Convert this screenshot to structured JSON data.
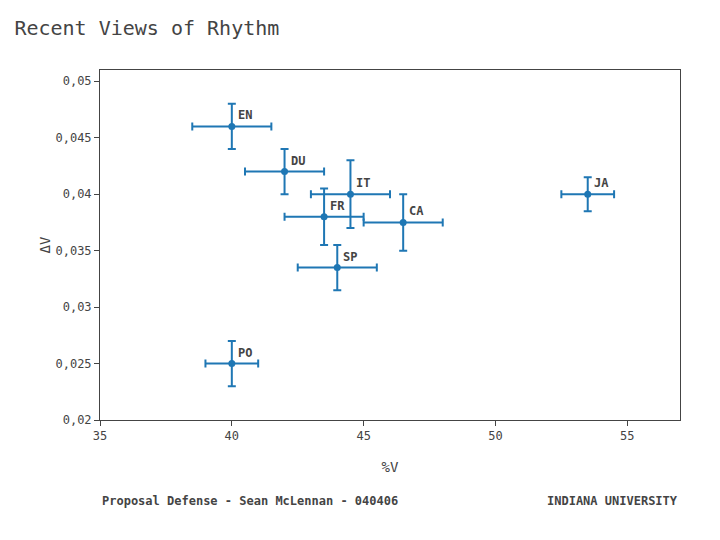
{
  "chart_data": {
    "type": "scatter",
    "title": "Recent Views of Rhythm",
    "x_label": "%V",
    "y_label": "ΔV",
    "labels": [
      "EN",
      "DU",
      "IT",
      "CA",
      "FR",
      "SP",
      "PO",
      "JA"
    ],
    "x": [
      40.0,
      42.0,
      44.5,
      46.5,
      43.5,
      44.0,
      40.0,
      53.5
    ],
    "values": [
      0.046,
      0.042,
      0.04,
      0.0375,
      0.038,
      0.0335,
      0.025,
      0.04
    ],
    "x_errors": [
      1.5,
      1.5,
      1.5,
      1.5,
      1.5,
      1.5,
      1.0,
      1.0
    ],
    "y_errors": [
      0.002,
      0.002,
      0.003,
      0.0025,
      0.0025,
      0.002,
      0.002,
      0.0015
    ],
    "xlim": [
      35,
      57
    ],
    "ylim": [
      0.02,
      0.051
    ],
    "xticks": [
      35,
      40,
      45,
      50,
      55
    ],
    "yticks": [
      {
        "value": 0.02,
        "label": "0,02"
      },
      {
        "value": 0.025,
        "label": "0,025"
      },
      {
        "value": 0.03,
        "label": "0,03"
      },
      {
        "value": 0.035,
        "label": "0,035"
      },
      {
        "value": 0.04,
        "label": "0,04"
      },
      {
        "value": 0.045,
        "label": "0,045"
      },
      {
        "value": 0.05,
        "label": "0,05"
      }
    ],
    "grid": false,
    "annotations": [
      "Proposal Defense - Sean McLennan - 040406",
      "INDIANA UNIVERSITY"
    ]
  }
}
